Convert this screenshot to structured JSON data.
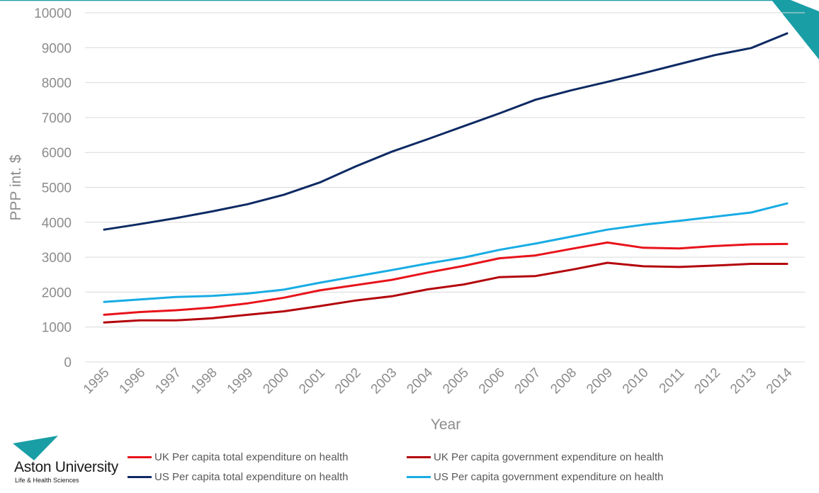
{
  "chart_data": {
    "type": "line",
    "title": "",
    "xlabel": "Year",
    "ylabel": "PPP int. $",
    "ylim": [
      0,
      10000
    ],
    "yticks": [
      "0",
      "1000",
      "2000",
      "3000",
      "4000",
      "5000",
      "6000",
      "7000",
      "8000",
      "9000",
      "10000"
    ],
    "grid": true,
    "categories": [
      "1995",
      "1996",
      "1997",
      "1998",
      "1999",
      "2000",
      "2001",
      "2002",
      "2003",
      "2004",
      "2005",
      "2006",
      "2007",
      "2008",
      "2009",
      "2010",
      "2011",
      "2012",
      "2013",
      "2014"
    ],
    "series": [
      {
        "name": "UK Per capita total expenditure on health",
        "color": "#e8131b",
        "values": [
          1350,
          1430,
          1480,
          1560,
          1680,
          1840,
          2050,
          2200,
          2350,
          2560,
          2750,
          2970,
          3050,
          3240,
          3420,
          3270,
          3250,
          3320,
          3370,
          3380
        ]
      },
      {
        "name": "UK Per capita government expenditure on health",
        "color": "#b3050b",
        "values": [
          1130,
          1190,
          1190,
          1250,
          1350,
          1450,
          1600,
          1760,
          1880,
          2080,
          2220,
          2430,
          2460,
          2640,
          2840,
          2740,
          2720,
          2760,
          2810,
          2810
        ]
      },
      {
        "name": "US Per capita total expenditure on health",
        "color": "#0d2a63",
        "values": [
          3790,
          3950,
          4120,
          4310,
          4520,
          4790,
          5140,
          5600,
          6020,
          6380,
          6750,
          7120,
          7510,
          7780,
          8020,
          8270,
          8530,
          8790,
          8990,
          9410
        ]
      },
      {
        "name": "US Per capita government expenditure on health",
        "color": "#18ace4",
        "values": [
          1720,
          1790,
          1860,
          1890,
          1960,
          2070,
          2270,
          2450,
          2630,
          2820,
          2990,
          3210,
          3390,
          3590,
          3790,
          3930,
          4040,
          4160,
          4280,
          4540
        ]
      }
    ],
    "legend_position": "bottom"
  },
  "branding": {
    "logo_name": "Aston University",
    "logo_sub": "Life & Health Sciences",
    "accent_color": "#1a9ea6"
  }
}
